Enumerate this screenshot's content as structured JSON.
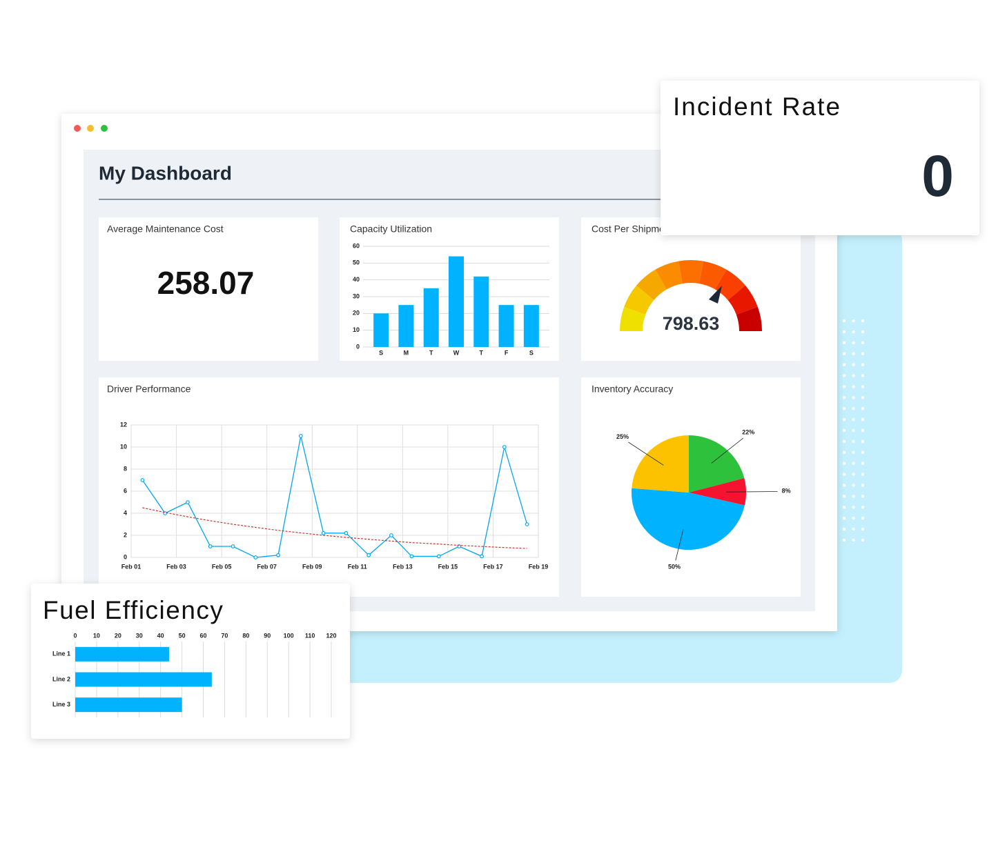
{
  "window": {
    "title": "My Dashboard"
  },
  "cards": {
    "maintenance": {
      "title": "Average Maintenance Cost",
      "value": 258.07
    },
    "cost": {
      "title": "Cost Per Shipment",
      "value": 798.63
    },
    "incident": {
      "title": "Incident Rate",
      "value": 0
    }
  },
  "chart_data": [
    {
      "type": "bar",
      "title": "Capacity Utilization",
      "categories": [
        "S",
        "M",
        "T",
        "W",
        "T",
        "F",
        "S"
      ],
      "values": [
        20,
        25,
        35,
        54,
        42,
        25,
        25
      ],
      "color": "#00b2ff",
      "ylim": [
        0,
        60
      ],
      "yticks": [
        0,
        10,
        20,
        30,
        40,
        50,
        60
      ],
      "grid": true
    },
    {
      "type": "line",
      "title": "Driver Performance",
      "x": [
        1.5,
        2.5,
        3.5,
        4.5,
        5.5,
        6.5,
        7.5,
        8.5,
        9.5,
        10.5,
        11.5,
        12.5,
        13.4,
        14.6,
        15.5,
        16.5,
        17.5,
        18.5
      ],
      "series": [
        {
          "color": "#00a6f0",
          "values": [
            7,
            4,
            5,
            1,
            1,
            0,
            0.2,
            11,
            2.2,
            2.2,
            0.2,
            2,
            0.1,
            0.1,
            1,
            0.1,
            10,
            3
          ]
        },
        {
          "color": "#c0392b",
          "dashed": true,
          "values": [
            4.5,
            4.07,
            3.68,
            3.32,
            3.0,
            2.72,
            2.45,
            2.22,
            2.0,
            1.81,
            1.64,
            1.48,
            1.34,
            1.21,
            1.09,
            0.99,
            0.89,
            0.81
          ]
        }
      ],
      "xlim": [
        1,
        19
      ],
      "xticks": [
        {
          "value": 1,
          "label": "Feb 01"
        },
        {
          "value": 3,
          "label": "Feb 03"
        },
        {
          "value": 5,
          "label": "Feb 05"
        },
        {
          "value": 7,
          "label": "Feb 07"
        },
        {
          "value": 9,
          "label": "Feb 09"
        },
        {
          "value": 11,
          "label": "Feb 11"
        },
        {
          "value": 13,
          "label": "Feb 13"
        },
        {
          "value": 15,
          "label": "Feb 15"
        },
        {
          "value": 17,
          "label": "Feb 17"
        },
        {
          "value": 19,
          "label": "Feb 19"
        }
      ],
      "ylim": [
        0,
        12
      ],
      "yticks": [
        0,
        2,
        4,
        6,
        8,
        10,
        12
      ],
      "grid": true
    },
    {
      "type": "pie",
      "title": "Inventory Accuracy",
      "values": [
        22,
        8,
        50,
        25
      ],
      "value_labels": [
        "22%",
        "8%",
        "50%",
        "25%"
      ],
      "colors": [
        "#2dc13c",
        "#f5132f",
        "#00b2ff",
        "#fcc200"
      ]
    },
    {
      "type": "hbar",
      "title": "Fuel Efficiency",
      "categories": [
        "Line 1",
        "Line 2",
        "Line 3"
      ],
      "values": [
        44,
        64,
        50
      ],
      "color": "#00b2ff",
      "xlim": [
        0,
        120
      ],
      "xticks": [
        0,
        10,
        20,
        30,
        40,
        50,
        60,
        70,
        80,
        90,
        100,
        110,
        120
      ],
      "grid": true
    }
  ]
}
